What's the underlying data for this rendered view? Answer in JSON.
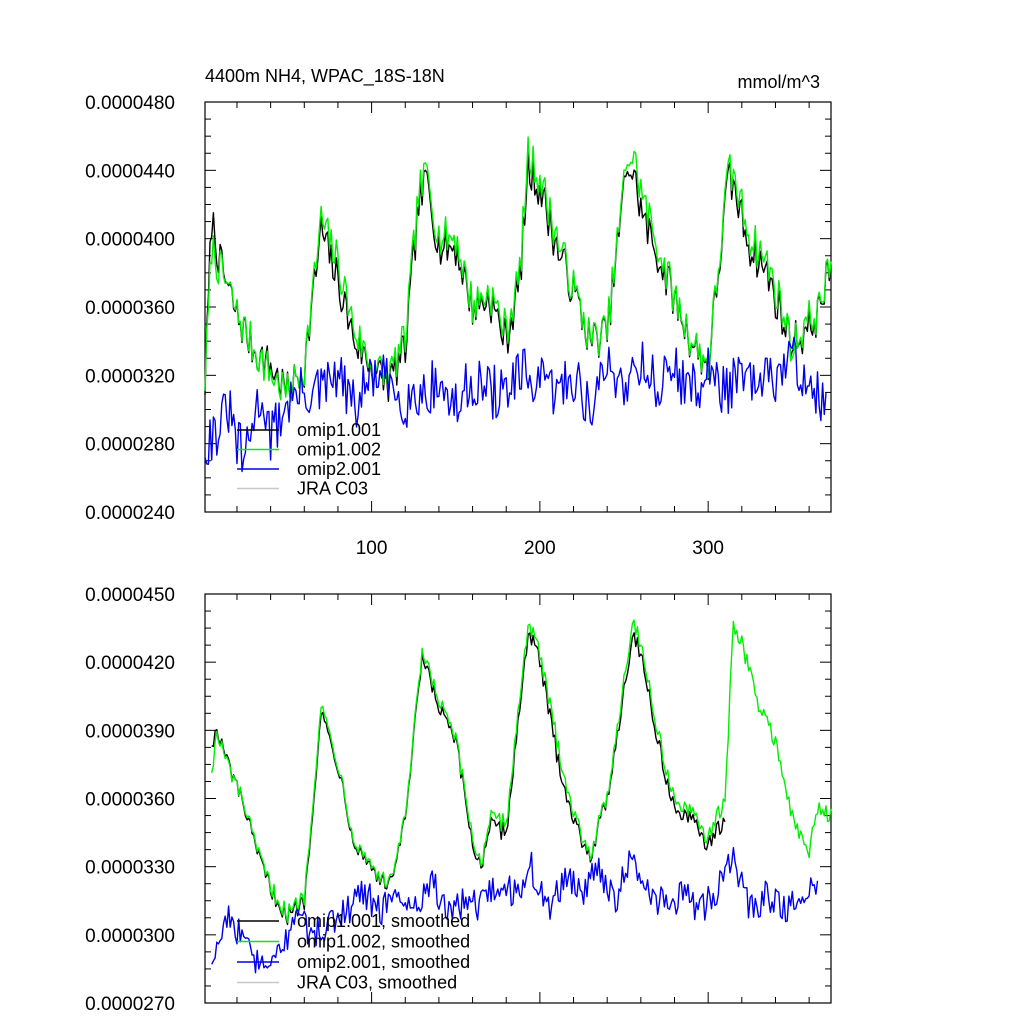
{
  "chart_data": [
    {
      "type": "line",
      "title": "4400m NH4, WPAC_18S-18N",
      "units": "mmol/m^3",
      "xlim": [
        1,
        373
      ],
      "ylim": [
        2.4e-05,
        4.8e-05
      ],
      "x_ticks": [
        100,
        200,
        300
      ],
      "x_tick_labels": [
        "100",
        "200",
        "300"
      ],
      "y_ticks": [
        2.4e-05,
        2.8e-05,
        3.2e-05,
        3.6e-05,
        4e-05,
        4.4e-05,
        4.8e-05
      ],
      "y_tick_labels": [
        "0.0000240",
        "0.0000280",
        "0.0000320",
        "0.0000360",
        "0.0000400",
        "0.0000440",
        "0.0000480"
      ],
      "legend_location": "bottom-left",
      "series": [
        {
          "name": "omip1.001",
          "color": "#000000",
          "x": [
            1,
            5,
            10,
            15,
            20,
            25,
            30,
            40,
            50,
            60,
            70,
            80,
            90,
            100,
            110,
            120,
            128,
            133,
            140,
            150,
            160,
            170,
            180,
            188,
            193,
            200,
            210,
            220,
            230,
            240,
            252,
            256,
            262,
            270,
            280,
            290,
            300,
            312,
            315,
            325,
            335,
            345,
            350,
            358,
            365,
            373
          ],
          "values": [
            3.15e-05,
            4.12e-05,
            3.85e-05,
            3.7e-05,
            3.55e-05,
            3.45e-05,
            3.35e-05,
            3.25e-05,
            3.1e-05,
            3.25e-05,
            4.05e-05,
            3.75e-05,
            3.4e-05,
            3.25e-05,
            3.15e-05,
            3.35e-05,
            4.2e-05,
            4.35e-05,
            3.95e-05,
            3.95e-05,
            3.6e-05,
            3.65e-05,
            3.4e-05,
            3.75e-05,
            4.4e-05,
            4.3e-05,
            3.95e-05,
            3.7e-05,
            3.4e-05,
            3.45e-05,
            4.45e-05,
            4.35e-05,
            4.1e-05,
            3.9e-05,
            3.65e-05,
            3.4e-05,
            3.25e-05,
            4.35e-05,
            4.3e-05,
            3.95e-05,
            3.8e-05,
            3.5e-05,
            3.4e-05,
            3.45e-05,
            3.55e-05,
            3.85e-05
          ]
        },
        {
          "name": "omip1.002",
          "color": "#00ee00",
          "x": [
            1,
            5,
            10,
            15,
            20,
            25,
            30,
            40,
            50,
            60,
            70,
            80,
            90,
            100,
            110,
            120,
            128,
            133,
            140,
            150,
            160,
            170,
            180,
            188,
            193,
            200,
            210,
            220,
            230,
            240,
            252,
            256,
            262,
            270,
            280,
            290,
            300,
            312,
            315,
            325,
            335,
            345,
            350,
            358,
            365,
            373
          ],
          "values": [
            3.16e-05,
            3.95e-05,
            3.8e-05,
            3.7e-05,
            3.55e-05,
            3.45e-05,
            3.35e-05,
            3.2e-05,
            3.08e-05,
            3.25e-05,
            4.1e-05,
            3.85e-05,
            3.45e-05,
            3.25e-05,
            3.18e-05,
            3.4e-05,
            4.25e-05,
            4.38e-05,
            4e-05,
            4e-05,
            3.6e-05,
            3.68e-05,
            3.45e-05,
            3.78e-05,
            4.48e-05,
            4.35e-05,
            4e-05,
            3.7e-05,
            3.4e-05,
            3.45e-05,
            4.48e-05,
            4.45e-05,
            4.2e-05,
            3.95e-05,
            3.65e-05,
            3.4e-05,
            3.25e-05,
            4.38e-05,
            4.35e-05,
            4e-05,
            3.85e-05,
            3.55e-05,
            3.35e-05,
            3.5e-05,
            3.55e-05,
            3.86e-05
          ]
        },
        {
          "name": "omip2.001",
          "color": "#0000ee",
          "x": [
            1,
            5,
            10,
            15,
            20,
            25,
            30,
            35,
            40,
            50,
            60,
            70,
            80,
            90,
            100,
            110,
            120,
            130,
            140,
            150,
            160,
            170,
            180,
            190,
            200,
            210,
            220,
            230,
            240,
            250,
            260,
            270,
            280,
            290,
            300,
            310,
            320,
            330,
            340,
            350,
            360,
            370
          ],
          "values": [
            2.8e-05,
            2.85e-05,
            2.9e-05,
            3e-05,
            2.8e-05,
            2.7e-05,
            2.95e-05,
            3.1e-05,
            2.83e-05,
            3.05e-05,
            3.1e-05,
            3.1e-05,
            3.2e-05,
            3e-05,
            3.2e-05,
            3.15e-05,
            3.05e-05,
            3.1e-05,
            3.15e-05,
            3e-05,
            3.18e-05,
            3.1e-05,
            3.1e-05,
            3.2e-05,
            3.15e-05,
            3.1e-05,
            3.2e-05,
            3e-05,
            3.25e-05,
            3.15e-05,
            3.3e-05,
            3.12e-05,
            3.25e-05,
            3.1e-05,
            3.22e-05,
            3.12e-05,
            3.18e-05,
            3.12e-05,
            3.2e-05,
            3.3e-05,
            3.16e-05,
            3e-05
          ]
        },
        {
          "name": "JRA C03",
          "color": "#c8c8c8",
          "x": [],
          "values": []
        }
      ]
    },
    {
      "type": "line",
      "title": "",
      "xlim": [
        1,
        373
      ],
      "ylim": [
        2.7e-05,
        4.5e-05
      ],
      "x_ticks": [
        100,
        200,
        300
      ],
      "y_ticks": [
        2.7e-05,
        3e-05,
        3.3e-05,
        3.6e-05,
        3.9e-05,
        4.2e-05,
        4.5e-05
      ],
      "y_tick_labels": [
        "0.0000270",
        "0.0000300",
        "0.0000330",
        "0.0000360",
        "0.0000390",
        "0.0000420",
        "0.0000450"
      ],
      "legend_location": "bottom-left",
      "series": [
        {
          "name": "omip1.001, smoothed",
          "color": "#000000",
          "x": [
            5,
            8,
            15,
            25,
            30,
            40,
            50,
            60,
            70,
            80,
            90,
            100,
            110,
            120,
            130,
            140,
            150,
            160,
            165,
            170,
            180,
            193,
            200,
            210,
            220,
            230,
            240,
            255,
            260,
            270,
            280,
            290,
            300,
            310
          ],
          "values": [
            3.85e-05,
            3.89e-05,
            3.75e-05,
            3.55e-05,
            3.4e-05,
            3.2e-05,
            3.08e-05,
            3.15e-05,
            3.98e-05,
            3.75e-05,
            3.4e-05,
            3.3e-05,
            3.2e-05,
            3.5e-05,
            4.22e-05,
            4e-05,
            3.85e-05,
            3.4e-05,
            3.3e-05,
            3.48e-05,
            3.45e-05,
            4.34e-05,
            4.2e-05,
            3.8e-05,
            3.5e-05,
            3.35e-05,
            3.6e-05,
            4.32e-05,
            4.25e-05,
            3.85e-05,
            3.55e-05,
            3.5e-05,
            3.4e-05,
            3.5e-05
          ]
        },
        {
          "name": "omip1.002, smoothed",
          "color": "#00ee00",
          "x": [
            5,
            8,
            15,
            25,
            30,
            40,
            50,
            60,
            70,
            80,
            90,
            100,
            110,
            120,
            130,
            140,
            150,
            160,
            165,
            170,
            180,
            193,
            200,
            210,
            220,
            230,
            240,
            255,
            260,
            270,
            280,
            290,
            300,
            310,
            315,
            320,
            330,
            340,
            350,
            360,
            365,
            373
          ],
          "values": [
            3.72e-05,
            3.87e-05,
            3.73e-05,
            3.55e-05,
            3.4e-05,
            3.2e-05,
            3.08e-05,
            3.16e-05,
            4e-05,
            3.75e-05,
            3.4e-05,
            3.3e-05,
            3.2e-05,
            3.5e-05,
            4.23e-05,
            4.02e-05,
            3.85e-05,
            3.42e-05,
            3.3e-05,
            3.5e-05,
            3.48e-05,
            4.37e-05,
            4.22e-05,
            3.85e-05,
            3.52e-05,
            3.35e-05,
            3.6e-05,
            4.37e-05,
            4.28e-05,
            3.88e-05,
            3.58e-05,
            3.52e-05,
            3.42e-05,
            3.58e-05,
            4.35e-05,
            4.28e-05,
            4e-05,
            3.85e-05,
            3.5e-05,
            3.35e-05,
            3.55e-05,
            3.52e-05
          ]
        },
        {
          "name": "omip2.001, smoothed",
          "color": "#0000ee",
          "x": [
            5,
            15,
            25,
            35,
            45,
            55,
            65,
            75,
            85,
            95,
            105,
            115,
            125,
            135,
            145,
            155,
            165,
            175,
            185,
            195,
            205,
            215,
            225,
            235,
            245,
            255,
            265,
            275,
            285,
            295,
            305,
            315,
            325,
            335,
            345,
            355,
            365
          ],
          "values": [
            2.9e-05,
            3.1e-05,
            2.95e-05,
            2.85e-05,
            2.9e-05,
            3.1e-05,
            3e-05,
            3.05e-05,
            3.1e-05,
            3.2e-05,
            3.1e-05,
            3.2e-05,
            3.1e-05,
            3.25e-05,
            3.1e-05,
            3.15e-05,
            3.12e-05,
            3.22e-05,
            3.18e-05,
            3.3e-05,
            3.1e-05,
            3.25e-05,
            3.18e-05,
            3.3e-05,
            3.15e-05,
            3.35e-05,
            3.2e-05,
            3.12e-05,
            3.18e-05,
            3.1e-05,
            3.2e-05,
            3.35e-05,
            3.1e-05,
            3.18e-05,
            3.1e-05,
            3.15e-05,
            3.25e-05
          ]
        },
        {
          "name": "JRA C03, smoothed",
          "color": "#c8c8c8",
          "x": [],
          "values": []
        }
      ]
    }
  ]
}
